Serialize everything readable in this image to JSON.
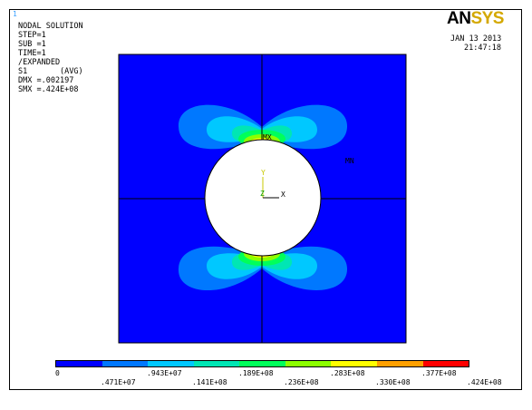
{
  "window_number": "1",
  "info_lines": [
    "NODAL SOLUTION",
    "",
    "STEP=1",
    "SUB =1",
    "TIME=1",
    "/EXPANDED",
    "S1       (AVG)",
    "DMX =.002197",
    "SMX =.424E+08"
  ],
  "logo": {
    "an": "AN",
    "sys": "SYS"
  },
  "date": "JAN 13 2013",
  "time": "21:47:18",
  "markers": {
    "mx": "MX",
    "mn": "MN"
  },
  "triad": {
    "y": "Y",
    "z": "Z",
    "x": "X"
  },
  "legend": {
    "colors": [
      "#0000ff",
      "#0078ff",
      "#00c8ff",
      "#00e6b4",
      "#00ff5a",
      "#8cff00",
      "#ffff00",
      "#ffa000",
      "#ff0000"
    ],
    "top_labels": [
      "0",
      ".943E+07",
      ".189E+08",
      ".283E+08",
      ".377E+08"
    ],
    "bottom_labels": [
      ".471E+07",
      ".141E+08",
      ".236E+08",
      ".330E+08",
      ".424E+08"
    ]
  }
}
